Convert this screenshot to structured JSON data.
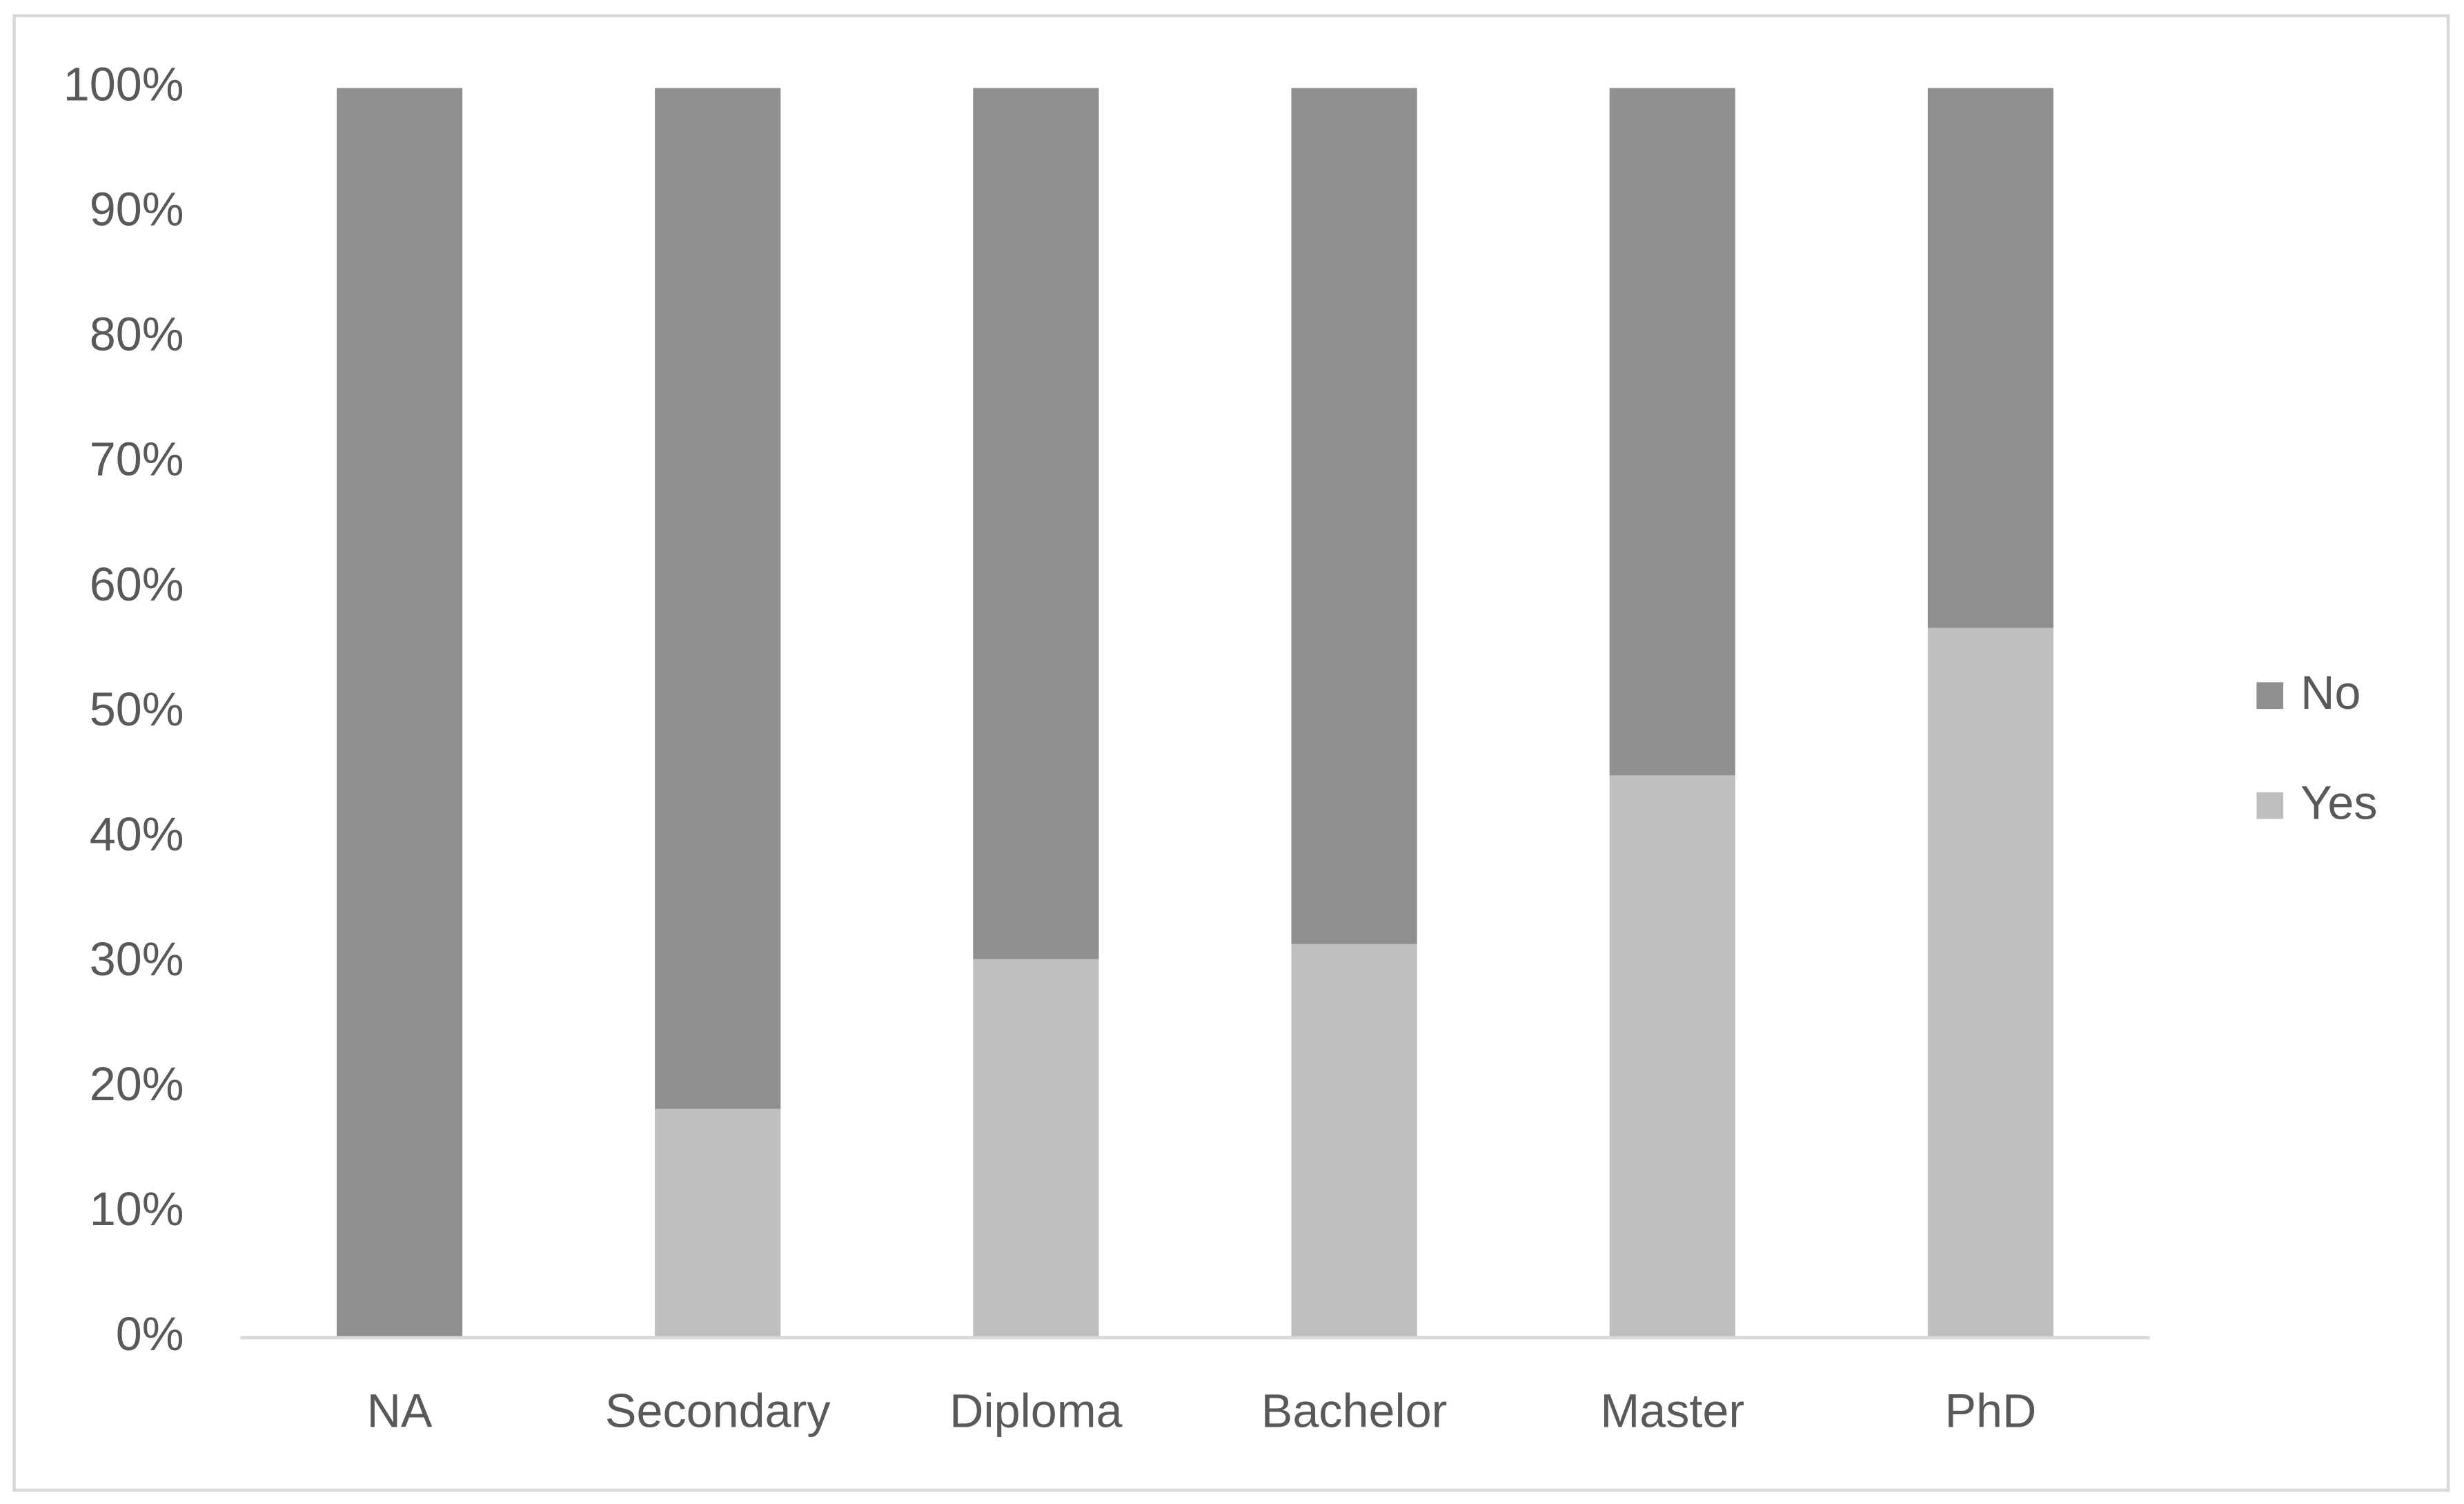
{
  "chart_data": {
    "type": "stacked-bar",
    "categories": [
      "NA",
      "Secondary",
      "Diploma",
      "Bachelor",
      "Master",
      "PhD"
    ],
    "series": [
      {
        "name": "Yes",
        "color": "#bfbfbf",
        "values": [
          0,
          18.3,
          30.3,
          31.5,
          45,
          56.8
        ]
      },
      {
        "name": "No",
        "color": "#8f8f8f",
        "values": [
          100,
          81.7,
          69.7,
          68.5,
          55,
          43.2
        ]
      }
    ],
    "ylim": [
      0,
      100
    ],
    "yticks": [
      {
        "value": 0,
        "label": "0%"
      },
      {
        "value": 10,
        "label": "10%"
      },
      {
        "value": 20,
        "label": "20%"
      },
      {
        "value": 30,
        "label": "30%"
      },
      {
        "value": 40,
        "label": "40%"
      },
      {
        "value": 50,
        "label": "50%"
      },
      {
        "value": 60,
        "label": "60%"
      },
      {
        "value": 70,
        "label": "70%"
      },
      {
        "value": 80,
        "label": "80%"
      },
      {
        "value": 90,
        "label": "90%"
      },
      {
        "value": 100,
        "label": "100%"
      }
    ],
    "legend": "right"
  }
}
